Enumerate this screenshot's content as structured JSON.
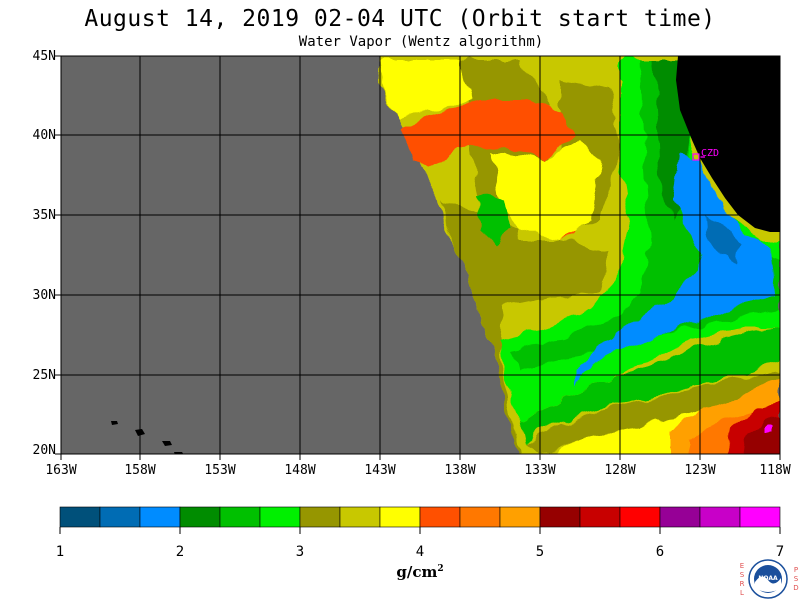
{
  "title": "August 14, 2019  02-04 UTC  (Orbit start time)",
  "subtitle": "Water Vapor (Wentz algorithm)",
  "map": {
    "lat_labels": [
      "45N",
      "40N",
      "35N",
      "30N",
      "25N",
      "20N"
    ],
    "lon_labels": [
      "163W",
      "158W",
      "153W",
      "148W",
      "143W",
      "138W",
      "133W",
      "128W",
      "123W",
      "118W"
    ],
    "station_label": "CZD",
    "colors": {
      "no_data": "#666666",
      "land": "#000000",
      "station": "#ff00ff"
    }
  },
  "colorbar": {
    "tick_labels": [
      "1",
      "2",
      "3",
      "4",
      "5",
      "6",
      "7"
    ],
    "units_base": "g/cm",
    "units_exp": "2",
    "colors": [
      "#00507a",
      "#006cb4",
      "#008cff",
      "#008c00",
      "#00c000",
      "#00f000",
      "#969600",
      "#c8c800",
      "#ffff00",
      "#ff5000",
      "#ff7800",
      "#ffa000",
      "#960000",
      "#c80000",
      "#ff0000",
      "#960096",
      "#c800c8",
      "#ff00ff"
    ]
  },
  "logo": {
    "left_letters": [
      "E",
      "S",
      "R",
      "L"
    ],
    "right_letters": [
      "P",
      "S",
      "D"
    ],
    "agency": "NOAA"
  }
}
